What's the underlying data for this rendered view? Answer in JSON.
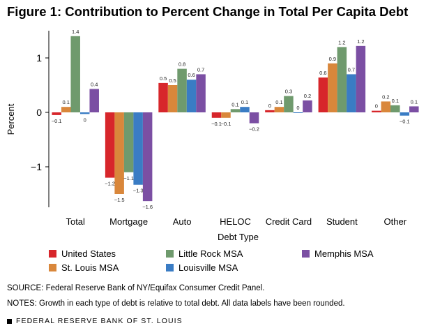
{
  "title": "Figure 1: Contribution to Percent Change in Total Per Capita Debt",
  "colors": {
    "United States": "#d7262b",
    "St. Louis MSA": "#d9873b",
    "Little Rock MSA": "#6f9a6d",
    "Louisville MSA": "#3a7cc4",
    "Memphis MSA": "#7b4fa3"
  },
  "chart_data": {
    "type": "bar",
    "title": "Figure 1: Contribution to Percent Change in Total Per Capita Debt",
    "xlabel": "Debt Type",
    "ylabel": "Percent",
    "ylim": [
      -1.75,
      1.5
    ],
    "yticks": [
      -1,
      0,
      1
    ],
    "grid": false,
    "legend_position": "bottom",
    "categories": [
      "Total",
      "Mortgage",
      "Auto",
      "HELOC",
      "Credit Card",
      "Student",
      "Other"
    ],
    "series": [
      {
        "name": "United States",
        "values": [
          -0.05,
          -1.2,
          0.54,
          -0.1,
          0.04,
          0.64,
          0.03
        ],
        "labels": [
          "−0.1",
          "−1.2",
          "0.5",
          "−0.1",
          "0",
          "0.6",
          "0"
        ]
      },
      {
        "name": "St. Louis MSA",
        "values": [
          0.1,
          -1.5,
          0.5,
          -0.1,
          0.1,
          0.9,
          0.2
        ],
        "labels": [
          "0.1",
          "−1.5",
          "0.5",
          "−0.1",
          "0.1",
          "0.9",
          "0.2"
        ]
      },
      {
        "name": "Little Rock MSA",
        "values": [
          1.4,
          -1.1,
          0.8,
          0.06,
          0.3,
          1.2,
          0.13
        ],
        "labels": [
          "1.4",
          "−1.1",
          "0.8",
          "0.1",
          "0.3",
          "1.2",
          "0.1"
        ]
      },
      {
        "name": "Louisville MSA",
        "values": [
          -0.03,
          -1.33,
          0.6,
          0.1,
          0.0,
          0.7,
          -0.06
        ],
        "labels": [
          "0",
          "−1.3",
          "0.6",
          "0.1",
          "0",
          "0.7",
          "−0.1"
        ]
      },
      {
        "name": "Memphis MSA",
        "values": [
          0.43,
          -1.63,
          0.7,
          -0.2,
          0.22,
          1.22,
          0.11
        ],
        "labels": [
          "0.4",
          "−1.6",
          "0.7",
          "−0.2",
          "0.2",
          "1.2",
          "0.1"
        ]
      }
    ]
  },
  "source": "SOURCE: Federal Reserve Bank of NY/Equifax Consumer Credit Panel.",
  "notes": "NOTES: Growth in each type of debt is relative to total debt. All data labels have been rounded.",
  "footer": "FEDERAL RESERVE BANK OF ST. LOUIS"
}
